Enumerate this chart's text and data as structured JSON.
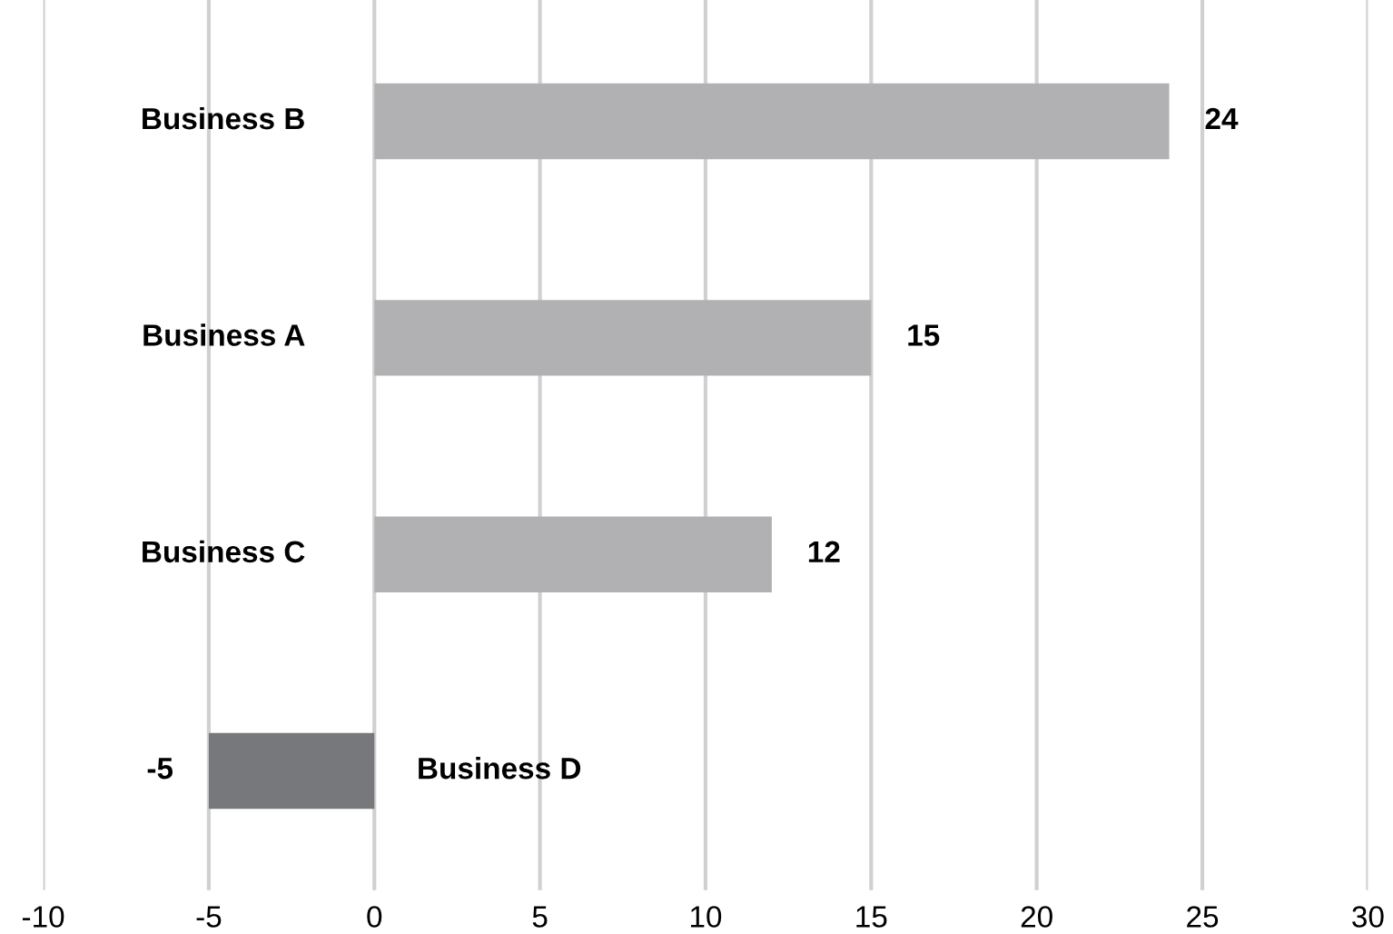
{
  "chart_data": {
    "type": "bar",
    "orientation": "horizontal",
    "categories": [
      "Business B",
      "Business A",
      "Business C",
      "Business D"
    ],
    "values": [
      24,
      15,
      12,
      -5
    ],
    "colors": [
      "#b1b1b3",
      "#b1b1b3",
      "#b1b1b3",
      "#77787b"
    ],
    "xlim": [
      -10,
      30
    ],
    "xticks": [
      -10,
      -5,
      0,
      5,
      10,
      15,
      20,
      25,
      30
    ],
    "grid": "x",
    "data_labels": true,
    "legend": false
  }
}
